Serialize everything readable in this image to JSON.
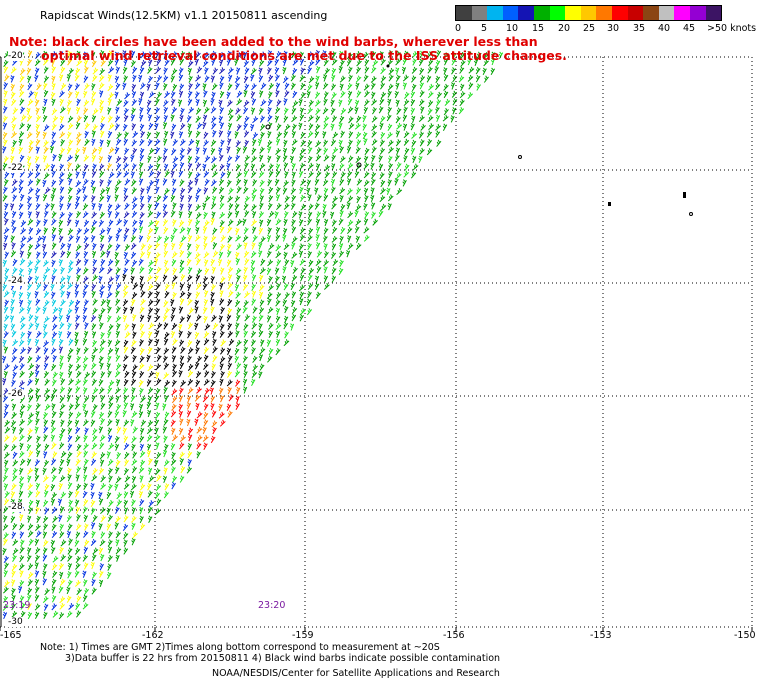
{
  "title": "Rapidscat Winds(12.5KM) v1.1 20150811 ascending",
  "note": {
    "line1": "Note: black circles have been added to the wind barbs, wherever less than",
    "line2": "optimal wind retrieval conditions are met due to the ISS attitude changes."
  },
  "colorbar": {
    "labels": [
      "0",
      "5",
      "10",
      "15",
      "20",
      "25",
      "30",
      "35",
      "40",
      "45",
      ">50 knots"
    ],
    "colors": [
      "#404040",
      "#808080",
      "#00b4f0",
      "#0060ff",
      "#1414b4",
      "#00b000",
      "#00ff00",
      "#ffff00",
      "#ffc800",
      "#ff7800",
      "#ff0000",
      "#c80000",
      "#8b4513",
      "#c0c0c0",
      "#ff00ff",
      "#9400d3",
      "#3c1464"
    ]
  },
  "axes": {
    "y_labels": [
      "-20",
      "-22",
      "-24",
      "-26",
      "-28",
      "-30"
    ],
    "x_labels": [
      "-165",
      "-162",
      "-159",
      "-156",
      "-153",
      "-150"
    ]
  },
  "time_stamps": [
    "23:19",
    "23:20"
  ],
  "footer": {
    "line1": "Note: 1) Times are GMT 2)Times along bottom correspond to measurement at ~20S",
    "line2": "3)Data buffer is 22 hrs from 20150811 4) Black wind barbs indicate possible contamination",
    "line3": "NOAA/NESDIS/Center for Satellite Applications and Research"
  },
  "colors": {
    "grid": "#000000",
    "note": "#e00000",
    "timestamp": "#7a1aa0",
    "barb_palette": [
      "#0030e0",
      "#1a1ab4",
      "#00a000",
      "#20e020",
      "#ffff00",
      "#ffc800",
      "#ff7800",
      "#ff0000",
      "#00c8e0",
      "#000000"
    ]
  }
}
